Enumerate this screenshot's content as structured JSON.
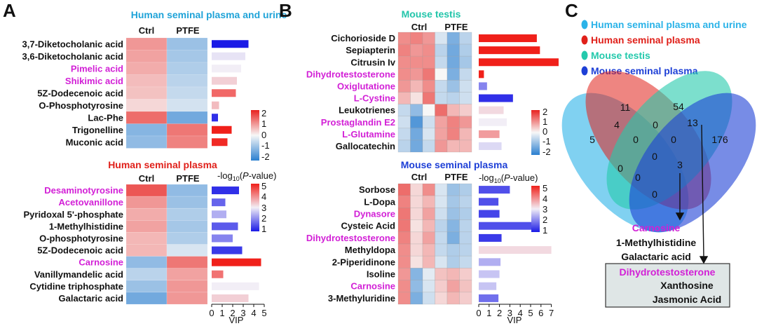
{
  "panels": {
    "A": {
      "letter": "A",
      "top": {
        "title": "Human seminal plasma and urine",
        "title_color": "#1fa3d8",
        "col_labels": [
          "Ctrl",
          "PTFE"
        ],
        "rows": [
          {
            "name": "3,7-Diketocholanic acid",
            "highlight": false
          },
          {
            "name": "3,6-Diketocholanic acid",
            "highlight": false
          },
          {
            "name": "Pimelic acid",
            "highlight": true
          },
          {
            "name": "Shikimic acid",
            "highlight": true
          },
          {
            "name": "5Z-Dodecenoic acid",
            "highlight": false
          },
          {
            "name": "O-Phosphotyrosine",
            "highlight": false
          },
          {
            "name": "Lac-Phe",
            "highlight": false
          },
          {
            "name": "Trigonelline",
            "highlight": false
          },
          {
            "name": "Muconic acid",
            "highlight": false
          }
        ],
        "heat": [
          [
            0.9,
            -0.9
          ],
          [
            0.8,
            -0.8
          ],
          [
            0.7,
            -0.7
          ],
          [
            0.55,
            -0.6
          ],
          [
            0.5,
            -0.5
          ],
          [
            0.3,
            -0.35
          ],
          [
            1.3,
            -1.3
          ],
          [
            -1.1,
            1.2
          ],
          [
            -1.0,
            1.1
          ]
        ],
        "vip": [
          3.5,
          3.2,
          2.8,
          2.4,
          2.3,
          0.7,
          0.6,
          1.9,
          1.5
        ],
        "pval": [
          1.0,
          2.9,
          3.0,
          3.3,
          4.3,
          3.5,
          1.2,
          5.0,
          4.9
        ],
        "legend_ticks": [
          "2",
          "1",
          "0",
          "-1",
          "-2"
        ]
      },
      "bottom": {
        "title": "Human seminal plasma",
        "title_color": "#e0201a",
        "col_labels": [
          "Ctrl",
          "PTFE"
        ],
        "rows": [
          {
            "name": "Desaminotyrosine",
            "highlight": true
          },
          {
            "name": "Acetovanillone",
            "highlight": true
          },
          {
            "name": "Pyridoxal 5'-phosphate",
            "highlight": false
          },
          {
            "name": "1-Methylhistidine",
            "highlight": false
          },
          {
            "name": "O-phosphotyrosine",
            "highlight": false
          },
          {
            "name": "5Z-Dodecenoic acid",
            "highlight": false
          },
          {
            "name": "Carnosine",
            "highlight": true
          },
          {
            "name": "Vanillymandelic acid",
            "highlight": false
          },
          {
            "name": "Cytidine triphosphate",
            "highlight": false
          },
          {
            "name": "Galactaric acid",
            "highlight": false
          }
        ],
        "heat": [
          [
            1.5,
            -1.0
          ],
          [
            0.9,
            -0.9
          ],
          [
            0.7,
            -0.7
          ],
          [
            0.8,
            -0.8
          ],
          [
            0.6,
            -0.7
          ],
          [
            0.6,
            -0.3
          ],
          [
            -1.0,
            1.2
          ],
          [
            -0.6,
            0.8
          ],
          [
            -0.9,
            0.9
          ],
          [
            -1.3,
            0.9
          ]
        ],
        "vip": [
          2.6,
          1.3,
          1.4,
          2.5,
          2.0,
          2.9,
          4.7,
          1.1,
          4.5,
          3.5
        ],
        "pval": [
          1.2,
          1.7,
          2.4,
          1.6,
          2.0,
          1.3,
          5.0,
          4.2,
          3.0,
          3.3
        ],
        "pv_label": "-log10(P-value)",
        "pv_ticks": [
          "5",
          "4",
          "3",
          "2",
          "1"
        ],
        "vip_ticks": [
          "0",
          "1",
          "2",
          "3",
          "4",
          "5"
        ],
        "vip_label": "VIP"
      }
    },
    "B": {
      "letter": "B",
      "top": {
        "title": "Mouse testis",
        "title_color": "#22c5aa",
        "col_labels": [
          "Ctrl",
          "PTFE"
        ],
        "rows": [
          {
            "name": "Cichorioside D",
            "highlight": false
          },
          {
            "name": "Sepiapterin",
            "highlight": false
          },
          {
            "name": "Citrusin Iv",
            "highlight": false
          },
          {
            "name": "Dihydrotestosterone",
            "highlight": true
          },
          {
            "name": "Oxiglutatione",
            "highlight": true
          },
          {
            "name": "L-Cystine",
            "highlight": true
          },
          {
            "name": "Leukotrienes",
            "highlight": false
          },
          {
            "name": "Prostaglandin E2",
            "highlight": true
          },
          {
            "name": "L-Glutamine",
            "highlight": true
          },
          {
            "name": "Gallocatechin",
            "highlight": false
          }
        ],
        "heat": [
          [
            1.0,
            1.1,
            0.9,
            -0.3,
            -1.2,
            -0.6
          ],
          [
            1.1,
            0.9,
            1.0,
            -0.6,
            -1.3,
            -0.7
          ],
          [
            1.0,
            1.0,
            1.0,
            -0.5,
            -1.3,
            -0.8
          ],
          [
            1.0,
            0.9,
            1.2,
            0.0,
            -1.2,
            -0.5
          ],
          [
            0.9,
            0.6,
            1.0,
            -0.5,
            -0.9,
            -0.4
          ],
          [
            0.6,
            0.2,
            1.2,
            -0.5,
            -0.6,
            -0.4
          ],
          [
            -0.5,
            -1.0,
            0.0,
            1.3,
            0.6,
            0.4
          ],
          [
            -0.4,
            -1.6,
            -0.4,
            0.8,
            1.1,
            0.9
          ],
          [
            -0.5,
            -1.3,
            -0.3,
            0.8,
            1.1,
            0.6
          ],
          [
            -0.6,
            -1.3,
            -0.5,
            0.9,
            0.6,
            0.6
          ]
        ],
        "vip": [
          5.6,
          5.9,
          7.7,
          0.5,
          0.8,
          3.3,
          2.4,
          2.7,
          2.0,
          2.2
        ],
        "pval": [
          5.0,
          5.0,
          5.0,
          5.0,
          2.0,
          1.2,
          3.2,
          3.0,
          3.8,
          2.8
        ],
        "legend_ticks": [
          "2",
          "1",
          "0",
          "-1",
          "-2"
        ]
      },
      "bottom": {
        "title": "Mouse seminal plasma",
        "title_color": "#1d3fd6",
        "col_labels": [
          "Ctrl",
          "PTFE"
        ],
        "rows": [
          {
            "name": "Sorbose",
            "highlight": false
          },
          {
            "name": "L-Dopa",
            "highlight": false
          },
          {
            "name": "Dynasore",
            "highlight": true
          },
          {
            "name": "Cysteic Acid",
            "highlight": false
          },
          {
            "name": "Dihydrotestosterone",
            "highlight": true
          },
          {
            "name": "Methyldopa",
            "highlight": false
          },
          {
            "name": "2-Piperidinone",
            "highlight": false
          },
          {
            "name": "Isoline",
            "highlight": false
          },
          {
            "name": "Carnosine",
            "highlight": true
          },
          {
            "name": "3-Methyluridine",
            "highlight": false
          }
        ],
        "heat": [
          [
            1.3,
            0.3,
            1.0,
            -0.3,
            -0.9,
            -0.7
          ],
          [
            1.1,
            0.3,
            0.6,
            -0.3,
            -0.8,
            -0.6
          ],
          [
            1.2,
            0.3,
            0.8,
            -0.4,
            -0.9,
            -0.7
          ],
          [
            1.2,
            0.2,
            0.6,
            -0.6,
            -1.1,
            -0.6
          ],
          [
            1.1,
            0.3,
            0.8,
            -0.5,
            -1.2,
            -0.6
          ],
          [
            1.0,
            0.3,
            0.6,
            -0.5,
            -0.7,
            -0.6
          ],
          [
            1.0,
            0.2,
            0.6,
            -0.3,
            -0.7,
            -0.5
          ],
          [
            0.9,
            -1.1,
            -0.2,
            0.5,
            0.6,
            0.4
          ],
          [
            1.0,
            -1.0,
            -0.3,
            0.4,
            0.8,
            0.5
          ],
          [
            1.0,
            -1.2,
            -0.4,
            0.3,
            0.6,
            0.4
          ]
        ],
        "vip": [
          3.0,
          1.9,
          2.0,
          5.6,
          2.2,
          7.0,
          2.1,
          2.0,
          1.7,
          1.9
        ],
        "pval": [
          1.5,
          1.5,
          1.4,
          1.5,
          1.3,
          3.2,
          2.4,
          2.6,
          2.6,
          1.8
        ],
        "pv_label": "-log10(P-value)",
        "pv_ticks": [
          "5",
          "4",
          "3",
          "2",
          "1"
        ],
        "vip_ticks": [
          "0",
          "1",
          "2",
          "3",
          "4",
          "5",
          "6",
          "7"
        ],
        "vip_label": "VIP"
      }
    },
    "C": {
      "letter": "C",
      "legend": [
        {
          "label": "Human seminal plasma and urine",
          "color": "#2bb3e8"
        },
        {
          "label": "Human seminal plasma",
          "color": "#e0201a"
        },
        {
          "label": "Mouse testis",
          "color": "#24c9ac"
        },
        {
          "label": "Mouse seminal plasma",
          "color": "#1d3fd6"
        }
      ],
      "counts": {
        "only_mouse_testis": "54",
        "only_human_plasma": "11",
        "only_human_plasma_urine": "5",
        "only_mouse_plasma": "176",
        "human_plasma_and_urine_human_plasma": "4",
        "human_plasma_mouse_testis": "0",
        "mouse_testis_mouse_plasma": "13",
        "human_plasma_urine_mouse_plasma": "0",
        "hp_mt_hpu": "0",
        "hp_mt_mp": "0",
        "hpu_hp_mp": "0",
        "hpu_mt_mp": "3",
        "all_four": "0",
        "hpu_mt": "0",
        "hp_mp": "0"
      },
      "annot_magenta": "Carnosine",
      "annot_lines": [
        "1-Methylhistidine",
        "Galactaric acid"
      ],
      "box_magenta": "Dihydrotestosterone",
      "box_lines": [
        "Xanthosine",
        "Jasmonic Acid"
      ]
    }
  },
  "colors": {
    "highlight_text": "#d21fd6",
    "normal_text": "#111111"
  }
}
